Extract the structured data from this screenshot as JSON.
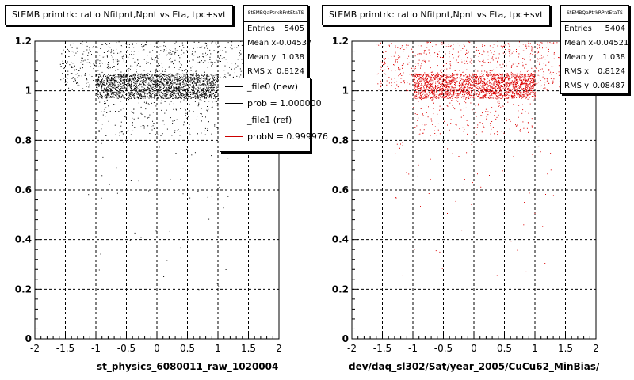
{
  "chart_data": [
    {
      "type": "scatter",
      "title": "StEMB primtrk: ratio Nfitpnt,Npnt vs Eta, tpc+svt",
      "xlabel": "st_physics_6080011_raw_1020004",
      "ylabel": "",
      "xlim": [
        -2,
        2
      ],
      "ylim": [
        0,
        1.2
      ],
      "xticks": [
        "-2",
        "-1.5",
        "-1",
        "-0.5",
        "0",
        "0.5",
        "1",
        "1.5",
        "2"
      ],
      "yticks": [
        "0",
        "0.2",
        "0.4",
        "0.6",
        "0.8",
        "1",
        "1.2"
      ],
      "grid": true,
      "marker_color": "#000000",
      "stats": {
        "name": "StEMBQaPtrkRPntEtaTS",
        "entries": "5405",
        "mean_x": "-0.04537",
        "mean_y": "1.038",
        "rms_x": "0.8124"
      },
      "legend": [
        {
          "label": "_file0 (new)",
          "color": "#000000"
        },
        {
          "label": "prob = 1.000000",
          "color": "#000000"
        },
        {
          "label": "_file1 (ref)",
          "color": "#cc0000"
        },
        {
          "label": "probN = 0.999976",
          "color": "#cc0000"
        }
      ],
      "series": [
        {
          "distribution": [
            {
              "x": [
                -1.0,
                1.0
              ],
              "y": [
                0.97,
                1.07
              ],
              "count": 1900
            },
            {
              "x": [
                -1.6,
                1.6
              ],
              "y": [
                1.0,
                1.2
              ],
              "count": 700
            },
            {
              "x": [
                -1.0,
                1.0
              ],
              "y": [
                0.82,
                1.0
              ],
              "count": 220
            },
            {
              "x": [
                -1.3,
                1.3
              ],
              "y": [
                0.55,
                0.85
              ],
              "count": 45
            },
            {
              "x": [
                -1.2,
                1.2
              ],
              "y": [
                0.2,
                0.55
              ],
              "count": 18
            }
          ]
        }
      ]
    },
    {
      "type": "scatter",
      "title": "StEMB primtrk: ratio Nfitpnt,Npnt vs Eta, tpc+svt",
      "xlabel": "dev/daq_sl302/Sat/year_2005/CuCu62_MinBias/",
      "ylabel": "",
      "xlim": [
        -2,
        2
      ],
      "ylim": [
        0,
        1.2
      ],
      "xticks": [
        "-2",
        "-1.5",
        "-1",
        "-0.5",
        "0",
        "0.5",
        "1",
        "1.5",
        "2"
      ],
      "yticks": [
        "0",
        "0.2",
        "0.4",
        "0.6",
        "0.8",
        "1",
        "1.2"
      ],
      "grid": true,
      "marker_color": "#dd0000",
      "stats": {
        "name": "StEMBQaPtrkRPntEtaTS",
        "entries": "5404",
        "mean_x": "-0.04521",
        "mean_y": "1.038",
        "rms_x": "0.8124",
        "rms_y": "0.08487"
      },
      "series": [
        {
          "distribution": [
            {
              "x": [
                -1.0,
                1.0
              ],
              "y": [
                0.97,
                1.07
              ],
              "count": 1900
            },
            {
              "x": [
                -1.6,
                1.6
              ],
              "y": [
                1.0,
                1.2
              ],
              "count": 700
            },
            {
              "x": [
                -1.0,
                1.0
              ],
              "y": [
                0.82,
                1.0
              ],
              "count": 220
            },
            {
              "x": [
                -1.3,
                1.3
              ],
              "y": [
                0.55,
                0.85
              ],
              "count": 45
            },
            {
              "x": [
                -1.2,
                1.2
              ],
              "y": [
                0.2,
                0.55
              ],
              "count": 18
            }
          ]
        }
      ]
    }
  ],
  "labels": {
    "stats_entries": "Entries",
    "stats_mean_x": "Mean x",
    "stats_mean_y": "Mean y",
    "stats_rms_x": "RMS x",
    "stats_rms_y": "RMS y"
  }
}
